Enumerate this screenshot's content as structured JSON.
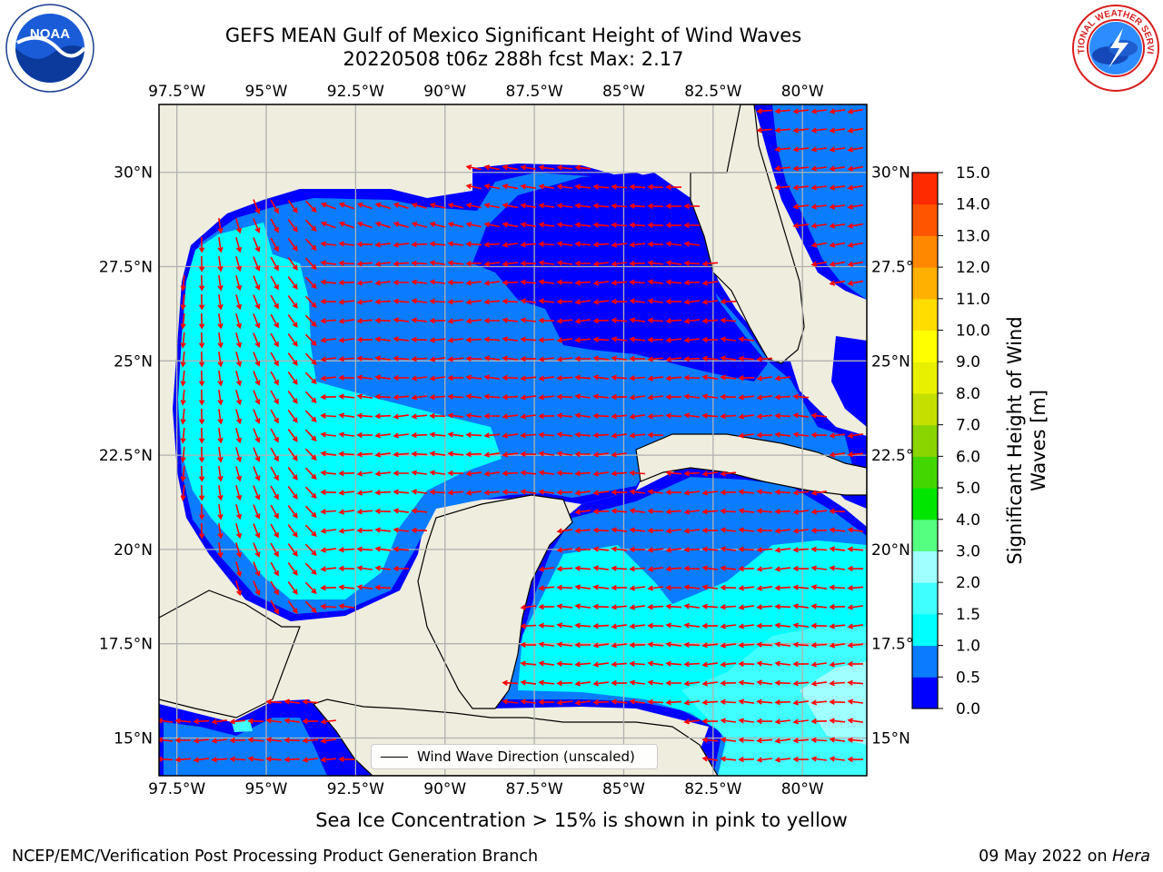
{
  "title_line1": "GEFS MEAN Gulf of Mexico Significant Height of Wind Waves",
  "title_line2": "20220508 t06z 288h fcst   Max: 2.17",
  "lon_labels": [
    "97.5°W",
    "95°W",
    "92.5°W",
    "90°W",
    "87.5°W",
    "85°W",
    "82.5°W",
    "80°W"
  ],
  "lat_labels": [
    "30°N",
    "27.5°N",
    "25°N",
    "22.5°N",
    "20°N",
    "17.5°N",
    "15°N"
  ],
  "lon_values": [
    -97.5,
    -95,
    -92.5,
    -90,
    -87.5,
    -85,
    -82.5,
    -80
  ],
  "lat_values": [
    30,
    27.5,
    25,
    22.5,
    20,
    17.5,
    15
  ],
  "map_extent": {
    "lon_min": -98,
    "lon_max": -78.2,
    "lat_min": 14,
    "lat_max": 31.8
  },
  "colorbar": {
    "title": "Significant Height of Wind Waves [m]",
    "title_line1": "Significant Height of Wind",
    "title_line2": "Waves [m]",
    "tick_labels": [
      "0.0",
      "0.5",
      "1.0",
      "1.5",
      "2.0",
      "3.0",
      "4.0",
      "5.0",
      "6.0",
      "7.0",
      "8.0",
      "9.0",
      "10.0",
      "11.0",
      "12.0",
      "13.0",
      "14.0",
      "15.0"
    ],
    "colors": [
      "#0000ff",
      "#0a7cff",
      "#00ffff",
      "#40ffff",
      "#a0ffff",
      "#55ff80",
      "#00e600",
      "#44d600",
      "#8ad400",
      "#c4e000",
      "#e8f000",
      "#ffff00",
      "#ffdd00",
      "#ffb000",
      "#ff8800",
      "#ff5500",
      "#ff2a00",
      "#ff0000"
    ]
  },
  "colors": {
    "land": "#efedde",
    "wave_0_05": "#0000ff",
    "wave_05_10": "#0a7cff",
    "wave_10_15": "#00ffff",
    "wave_15_20": "#40ffff",
    "wave_20_30": "#a0ffff",
    "arrows": "#ff0000",
    "grid": "#b0b0b0"
  },
  "legend": {
    "label": "Wind Wave Direction (unscaled)"
  },
  "sea_ice_note": "Sea Ice Concentration > 15% is shown in pink to yellow",
  "footer": {
    "left": "NCEP/EMC/Verification Post Processing Product Generation Branch",
    "right_date": "09 May 2022 on",
    "right_host": "Hera"
  },
  "logos": {
    "left": {
      "icon": "noaa-logo",
      "text": "NOAA"
    },
    "right": {
      "icon": "nws-logo",
      "text": "NATIONAL WEATHER SERVICE"
    }
  }
}
